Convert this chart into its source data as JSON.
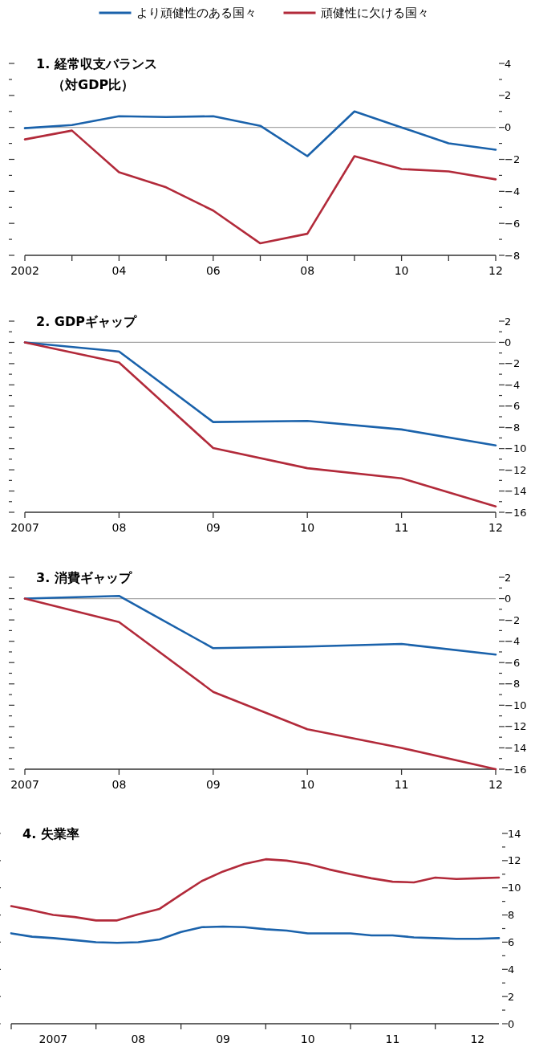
{
  "chart_data": [
    {
      "type": "line",
      "title": "1. 経常収支バランス",
      "subtitle": "（対GDP比）",
      "legend": "top",
      "x": [
        2002,
        2003,
        2004,
        2005,
        2006,
        2007,
        2008,
        2009,
        2010,
        2011,
        2012
      ],
      "xlim": [
        2002,
        2012
      ],
      "xticks": [
        {
          "value": 2002,
          "label": "2002"
        },
        {
          "value": 2003,
          "label": null
        },
        {
          "value": 2004,
          "label": "04"
        },
        {
          "value": 2005,
          "label": null
        },
        {
          "value": 2006,
          "label": "06"
        },
        {
          "value": 2007,
          "label": null
        },
        {
          "value": 2008,
          "label": "08"
        },
        {
          "value": 2009,
          "label": null
        },
        {
          "value": 2010,
          "label": "10"
        },
        {
          "value": 2011,
          "label": null
        },
        {
          "value": 2012,
          "label": "12"
        }
      ],
      "ylim": [
        -8,
        4
      ],
      "yticks": [
        {
          "value": 4,
          "label": "4"
        },
        {
          "value": 3,
          "label": null
        },
        {
          "value": 2,
          "label": "2"
        },
        {
          "value": 1,
          "label": null
        },
        {
          "value": 0,
          "label": "0"
        },
        {
          "value": -1,
          "label": null
        },
        {
          "value": -2,
          "label": "−2"
        },
        {
          "value": -3,
          "label": null
        },
        {
          "value": -4,
          "label": "−4"
        },
        {
          "value": -5,
          "label": null
        },
        {
          "value": -6,
          "label": "−6"
        },
        {
          "value": -7,
          "label": null
        },
        {
          "value": -8,
          "label": "−8"
        }
      ],
      "ref_lines": [
        {
          "axis": "y",
          "value": 0,
          "color": "#a6a6a6"
        }
      ],
      "series": [
        {
          "name": "より頑健性のある国々",
          "color": "#1a62ab",
          "values": [
            -0.05,
            0.15,
            0.7,
            0.65,
            0.7,
            0.1,
            -1.8,
            1.0,
            0,
            -1.0,
            -1.4
          ]
        },
        {
          "name": "頑健性に欠ける国々",
          "color": "#b22a3a",
          "values": [
            -0.75,
            -0.2,
            -2.8,
            -3.75,
            -5.2,
            -7.25,
            -6.65,
            -1.8,
            -2.6,
            -2.75,
            -3.25
          ]
        }
      ]
    },
    {
      "type": "line",
      "title": "2. GDPギャップ",
      "x": [
        2007,
        2008,
        2009,
        2010,
        2011,
        2012
      ],
      "xlim": [
        2007,
        2012
      ],
      "xticks": [
        {
          "value": 2007,
          "label": "2007"
        },
        {
          "value": 2008,
          "label": "08"
        },
        {
          "value": 2009,
          "label": "09"
        },
        {
          "value": 2010,
          "label": "10"
        },
        {
          "value": 2011,
          "label": "11"
        },
        {
          "value": 2012,
          "label": "12"
        }
      ],
      "ylim": [
        -16,
        2
      ],
      "yticks": [
        {
          "value": 2,
          "label": "2"
        },
        {
          "value": 1,
          "label": null
        },
        {
          "value": 0,
          "label": "0"
        },
        {
          "value": -1,
          "label": null
        },
        {
          "value": -2,
          "label": "−2"
        },
        {
          "value": -3,
          "label": null
        },
        {
          "value": -4,
          "label": "−4"
        },
        {
          "value": -5,
          "label": null
        },
        {
          "value": -6,
          "label": "−6"
        },
        {
          "value": -7,
          "label": null
        },
        {
          "value": -8,
          "label": "−8"
        },
        {
          "value": -9,
          "label": null
        },
        {
          "value": -10,
          "label": "−10"
        },
        {
          "value": -11,
          "label": null
        },
        {
          "value": -12,
          "label": "−12"
        },
        {
          "value": -13,
          "label": null
        },
        {
          "value": -14,
          "label": "−14"
        },
        {
          "value": -15,
          "label": null
        },
        {
          "value": -16,
          "label": "−16"
        }
      ],
      "ref_lines": [
        {
          "axis": "y",
          "value": 0,
          "color": "#a6a6a6"
        }
      ],
      "series": [
        {
          "color": "#1a62ab",
          "values": [
            0,
            -0.85,
            -7.5,
            -7.4,
            -8.2,
            -9.7
          ]
        },
        {
          "color": "#b22a3a",
          "values": [
            0,
            -1.9,
            -9.95,
            -11.85,
            -12.8,
            -15.45
          ]
        }
      ]
    },
    {
      "type": "line",
      "title": "3. 消費ギャップ",
      "x": [
        2007,
        2008,
        2009,
        2010,
        2011,
        2012
      ],
      "xlim": [
        2007,
        2012
      ],
      "xticks": [
        {
          "value": 2007,
          "label": "2007"
        },
        {
          "value": 2008,
          "label": "08"
        },
        {
          "value": 2009,
          "label": "09"
        },
        {
          "value": 2010,
          "label": "10"
        },
        {
          "value": 2011,
          "label": "11"
        },
        {
          "value": 2012,
          "label": "12"
        }
      ],
      "ylim": [
        -16,
        2
      ],
      "yticks": [
        {
          "value": 2,
          "label": "2"
        },
        {
          "value": 1,
          "label": null
        },
        {
          "value": 0,
          "label": "0"
        },
        {
          "value": -1,
          "label": null
        },
        {
          "value": -2,
          "label": "−2"
        },
        {
          "value": -3,
          "label": null
        },
        {
          "value": -4,
          "label": "−4"
        },
        {
          "value": -5,
          "label": null
        },
        {
          "value": -6,
          "label": "−6"
        },
        {
          "value": -7,
          "label": null
        },
        {
          "value": -8,
          "label": "−8"
        },
        {
          "value": -9,
          "label": null
        },
        {
          "value": -10,
          "label": "−10"
        },
        {
          "value": -11,
          "label": null
        },
        {
          "value": -12,
          "label": "−12"
        },
        {
          "value": -13,
          "label": null
        },
        {
          "value": -14,
          "label": "−14"
        },
        {
          "value": -15,
          "label": null
        },
        {
          "value": -16,
          "label": "−16"
        }
      ],
      "ref_lines": [
        {
          "axis": "y",
          "value": 0,
          "color": "#a6a6a6"
        }
      ],
      "series": [
        {
          "color": "#1a62ab",
          "values": [
            0,
            0.25,
            -4.65,
            -4.5,
            -4.25,
            -5.25
          ]
        },
        {
          "color": "#b22a3a",
          "values": [
            0,
            -2.2,
            -8.75,
            -12.25,
            -14,
            -16
          ]
        }
      ]
    },
    {
      "type": "line",
      "title": "4. 失業率",
      "x": [
        "2007-01",
        "2007-04",
        "2007-07",
        "2007-10",
        "2008-01",
        "2008-04",
        "2008-07",
        "2008-10",
        "2009-01",
        "2009-04",
        "2009-07",
        "2009-10",
        "2010-01",
        "2010-04",
        "2010-07",
        "2010-10",
        "2011-01",
        "2011-04",
        "2011-07",
        "2011-10",
        "2012-01",
        "2012-04",
        "2012-07",
        "2012-10"
      ],
      "xlim": [
        "2007-01",
        "2012-10"
      ],
      "xticks": [
        {
          "value": "2007-01",
          "label": null
        },
        {
          "value": "2007-07",
          "label": "2007"
        },
        {
          "value": "2008-01",
          "label": null
        },
        {
          "value": "2008-07",
          "label": "08"
        },
        {
          "value": "2009-01",
          "label": null
        },
        {
          "value": "2009-07",
          "label": "09"
        },
        {
          "value": "2010-01",
          "label": null
        },
        {
          "value": "2010-07",
          "label": "10"
        },
        {
          "value": "2011-01",
          "label": null
        },
        {
          "value": "2011-07",
          "label": "11"
        },
        {
          "value": "2012-01",
          "label": null
        },
        {
          "value": "2012-07",
          "label": "12"
        }
      ],
      "ylim": [
        0,
        14
      ],
      "yticks": [
        {
          "value": 14,
          "label": "14"
        },
        {
          "value": 13,
          "label": null
        },
        {
          "value": 12,
          "label": "12"
        },
        {
          "value": 11,
          "label": null
        },
        {
          "value": 10,
          "label": "10"
        },
        {
          "value": 9,
          "label": null
        },
        {
          "value": 8,
          "label": "8"
        },
        {
          "value": 7,
          "label": null
        },
        {
          "value": 6,
          "label": "6"
        },
        {
          "value": 5,
          "label": null
        },
        {
          "value": 4,
          "label": "4"
        },
        {
          "value": 3,
          "label": null
        },
        {
          "value": 2,
          "label": "2"
        },
        {
          "value": 1,
          "label": null
        },
        {
          "value": 0,
          "label": "0"
        }
      ],
      "series": [
        {
          "color": "#1a62ab",
          "values": [
            6.65,
            6.4,
            6.3,
            6.15,
            6.0,
            5.95,
            6.0,
            6.2,
            6.75,
            7.1,
            7.15,
            7.1,
            6.95,
            6.85,
            6.65,
            6.65,
            6.65,
            6.5,
            6.5,
            6.35,
            6.3,
            6.25,
            6.25,
            6.3
          ]
        },
        {
          "color": "#b22a3a",
          "values": [
            8.65,
            8.35,
            8.0,
            7.85,
            7.6,
            7.6,
            8.05,
            8.45,
            9.5,
            10.5,
            11.2,
            11.75,
            12.1,
            12.0,
            11.75,
            11.35,
            11.0,
            10.7,
            10.45,
            10.4,
            10.75,
            10.65,
            10.7,
            10.75
          ]
        }
      ]
    }
  ]
}
